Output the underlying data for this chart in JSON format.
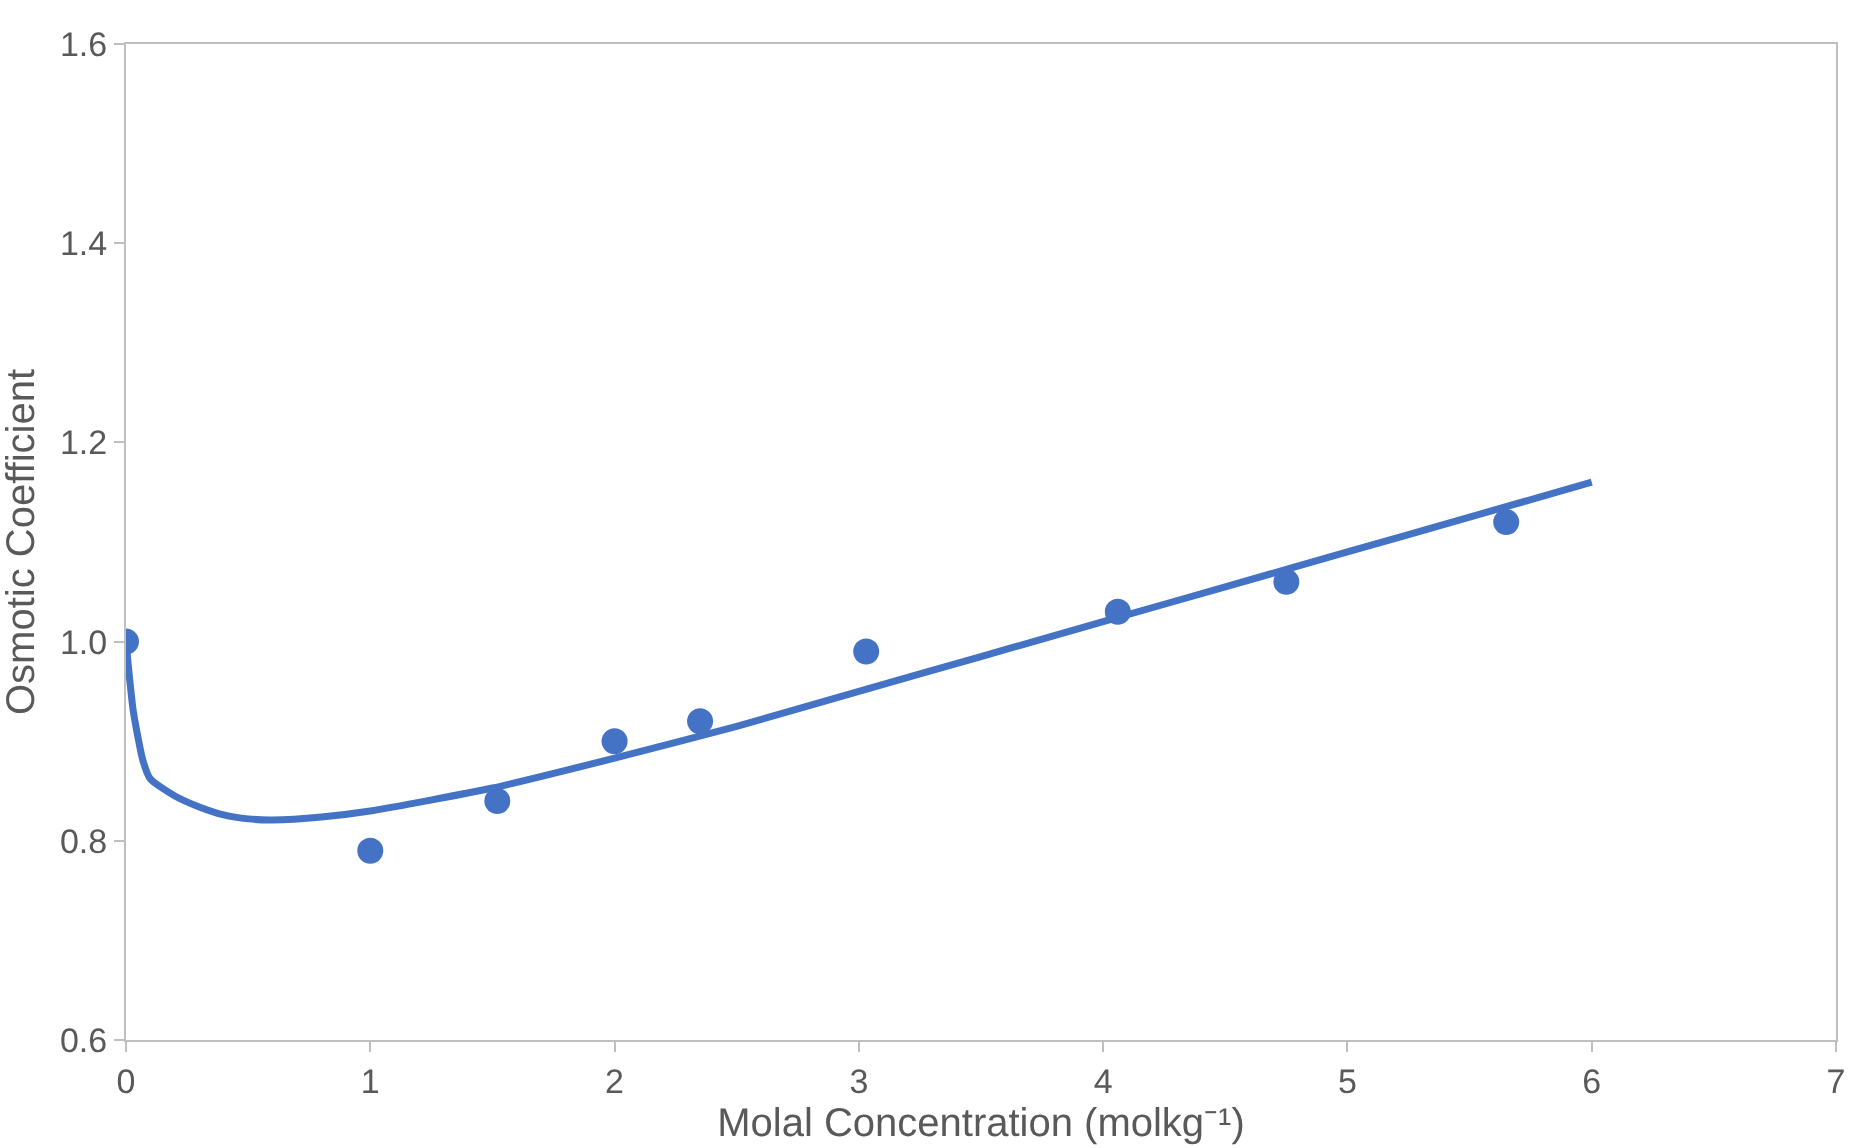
{
  "chart_data": {
    "type": "scatter",
    "xlabel": "Molal Concentration (molkg⁻¹)",
    "ylabel": "Osmotic Coefficient",
    "xlim": [
      0,
      7
    ],
    "xticks": [
      0,
      1,
      2,
      3,
      4,
      5,
      6,
      7
    ],
    "ylim": [
      0.6,
      1.6
    ],
    "yticks": [
      {
        "value": 0.6,
        "label": "0.6"
      },
      {
        "value": 0.8,
        "label": "0.8"
      },
      {
        "value": 1.0,
        "label": "1.0"
      },
      {
        "value": 1.2,
        "label": "1.2"
      },
      {
        "value": 1.4,
        "label": "1.4"
      },
      {
        "value": 1.6,
        "label": "1.6"
      }
    ],
    "grid": false,
    "series": [
      {
        "marker": "circle",
        "color": "#4472c4",
        "x": [
          0,
          1.0,
          1.52,
          2.0,
          2.35,
          3.03,
          4.06,
          4.75,
          5.65
        ],
        "values": [
          1.0,
          0.79,
          0.84,
          0.9,
          0.92,
          0.99,
          1.03,
          1.06,
          1.12
        ]
      },
      {
        "type": "line",
        "marker": "none",
        "line_style": "solid",
        "color": "#4472c4",
        "x": [
          0,
          0.03,
          0.07,
          0.1,
          0.2,
          0.3,
          0.4,
          0.5,
          0.6,
          0.8,
          1.0,
          1.5,
          2.0,
          2.5,
          3.0,
          3.5,
          4.0,
          4.5,
          5.0,
          5.5,
          6.0
        ],
        "values": [
          1.0,
          0.93,
          0.88,
          0.862,
          0.845,
          0.834,
          0.826,
          0.822,
          0.821,
          0.824,
          0.83,
          0.853,
          0.883,
          0.915,
          0.95,
          0.985,
          1.02,
          1.055,
          1.09,
          1.125,
          1.16
        ]
      }
    ]
  }
}
